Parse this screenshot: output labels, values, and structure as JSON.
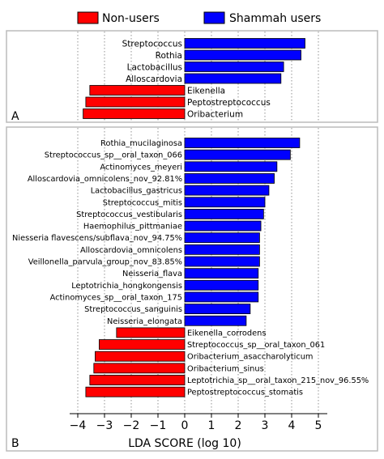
{
  "legend": {
    "items": [
      {
        "label": "Non-users",
        "color": "#ff0000"
      },
      {
        "label": "Shammah users",
        "color": "#0000ff"
      }
    ]
  },
  "colors": {
    "negative": "#ff0000",
    "positive": "#0000ff",
    "grid": "#777777"
  },
  "chart_data": [
    {
      "type": "bar",
      "orientation": "horizontal",
      "panel_label": "A",
      "xlim": [
        -4,
        5
      ],
      "grid": true,
      "legend_position": "top",
      "bars": [
        {
          "label": "Streptococcus",
          "value": 4.5
        },
        {
          "label": "Rothia",
          "value": 4.35
        },
        {
          "label": "Lactobacillus",
          "value": 3.7
        },
        {
          "label": "Alloscardovia",
          "value": 3.6
        },
        {
          "label": "Eikenella",
          "value": -3.55
        },
        {
          "label": "Peptostreptococcus",
          "value": -3.7
        },
        {
          "label": "Oribacterium",
          "value": -3.8
        }
      ]
    },
    {
      "type": "bar",
      "orientation": "horizontal",
      "panel_label": "B",
      "xlabel": "LDA SCORE (log 10)",
      "xlim": [
        -4,
        5
      ],
      "xticks": [
        -4,
        -3,
        -2,
        -1,
        0,
        1,
        2,
        3,
        4,
        5
      ],
      "xtick_labels": [
        "−4",
        "−3",
        "−2",
        "−1",
        "0",
        "1",
        "2",
        "3",
        "4",
        "5"
      ],
      "grid": true,
      "bars": [
        {
          "label": "Rothia_mucilaginosa",
          "value": 4.3
        },
        {
          "label": "Streptococcus_sp__oral_taxon_066",
          "value": 3.95
        },
        {
          "label": "Actinomyces_meyeri",
          "value": 3.45
        },
        {
          "label": "Alloscardovia_omnicolens_nov_92.81%",
          "value": 3.35
        },
        {
          "label": "Lactobacillus_gastricus",
          "value": 3.15
        },
        {
          "label": "Streptococcus_mitis",
          "value": 3.0
        },
        {
          "label": "Streptococcus_vestibularis",
          "value": 2.95
        },
        {
          "label": "Haemophilus_pittmaniae",
          "value": 2.85
        },
        {
          "label": "Niesseria flavescens/subflava_nov_94.75%",
          "value": 2.8
        },
        {
          "label": "Alloscardovia_omnicolens",
          "value": 2.8
        },
        {
          "label": "Veillonella_parvula_group_nov_83.85%",
          "value": 2.8
        },
        {
          "label": "Neisseria_flava",
          "value": 2.75
        },
        {
          "label": "Leptotrichia_hongkongensis",
          "value": 2.75
        },
        {
          "label": "Actinomyces_sp__oral_taxon_175",
          "value": 2.75
        },
        {
          "label": "Streptococcus_sanguinis",
          "value": 2.45
        },
        {
          "label": "Neisseria_elongata",
          "value": 2.3
        },
        {
          "label": "Eikenella_corrodens",
          "value": -2.55
        },
        {
          "label": "Streptococcus_sp__oral_taxon_061",
          "value": -3.2
        },
        {
          "label": "Oribacterium_asaccharolyticum",
          "value": -3.35
        },
        {
          "label": "Oribacterium_sinus",
          "value": -3.4
        },
        {
          "label": "Leptotrichia_sp__oral_taxon_215_nov_96.55%",
          "value": -3.55
        },
        {
          "label": "Peptostreptococcus_stomatis",
          "value": -3.7
        }
      ]
    }
  ]
}
